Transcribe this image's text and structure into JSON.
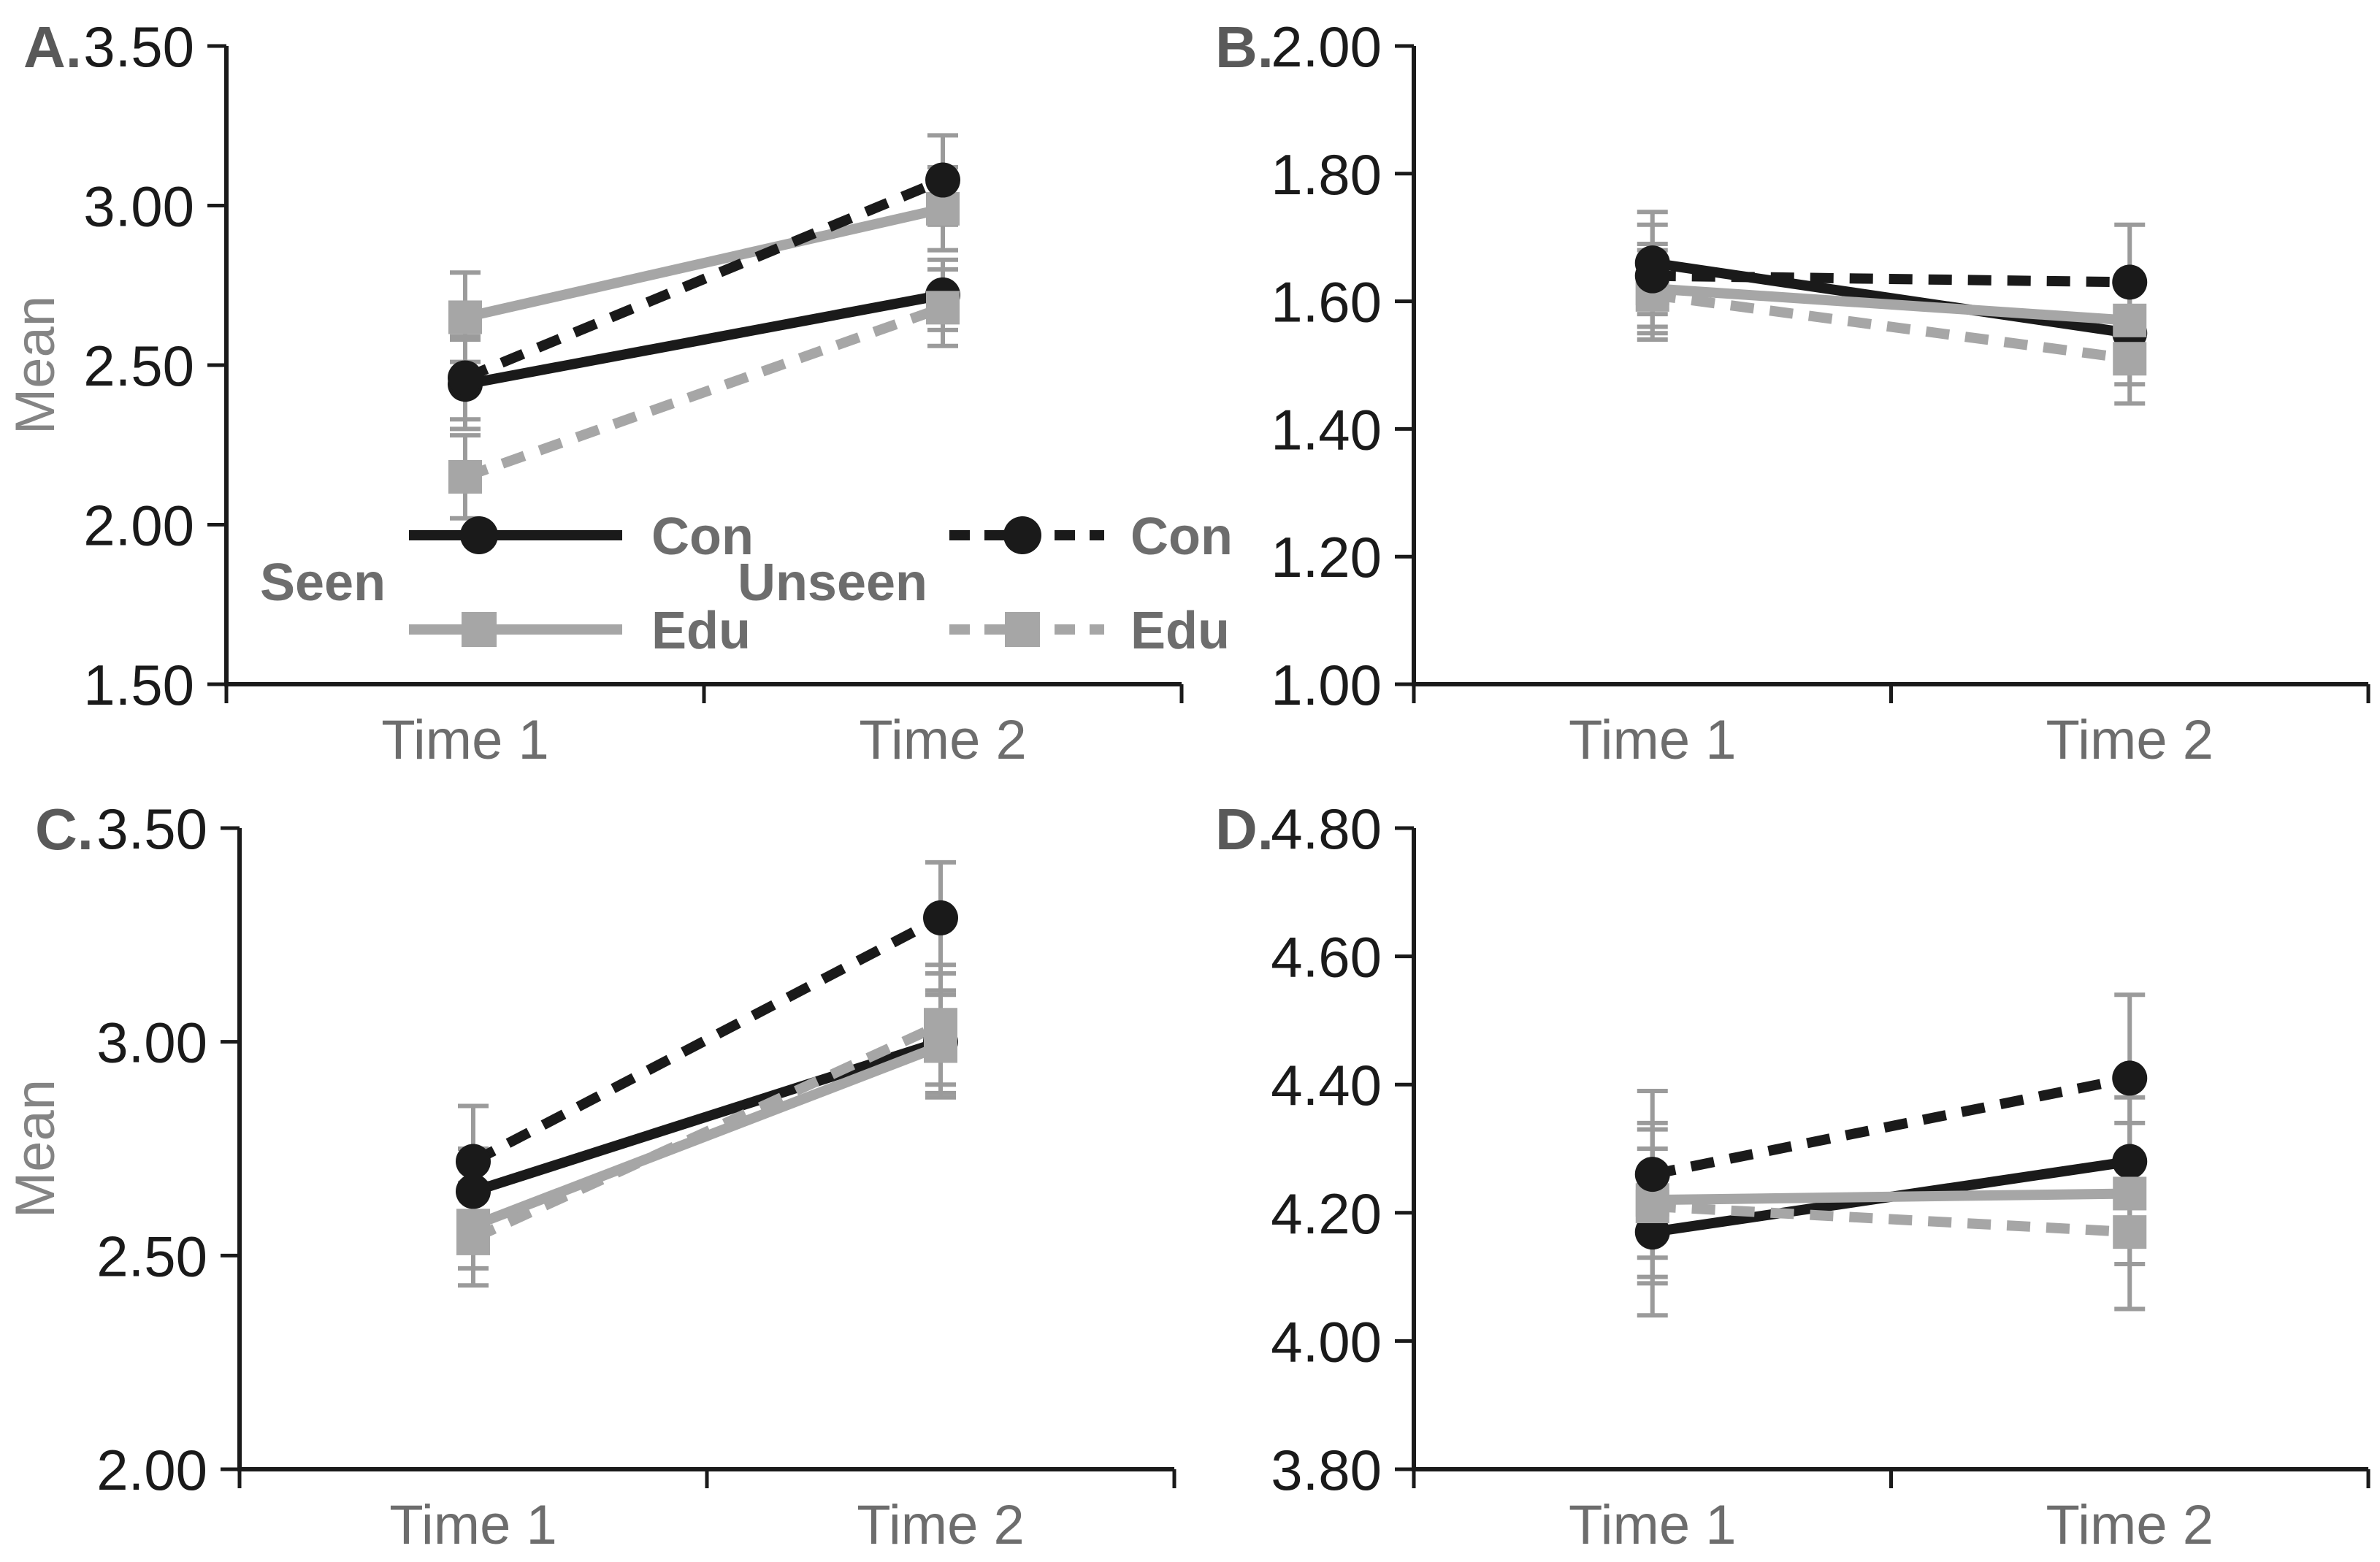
{
  "figure": {
    "background": "#ffffff",
    "palette": {
      "axis": "#1a1a1a",
      "tick_label": "#1a1a1a",
      "secondary_text": "#6d6d6d",
      "axis_title": "#848484",
      "panel_letter": "#595959",
      "error_bar": "#9b9b9b",
      "con_color": "#1a1a1a",
      "edu_color": "#a6a6a6"
    }
  },
  "legend": {
    "groups": [
      {
        "label": "Seen",
        "style": "solid",
        "items": [
          {
            "label": "Con",
            "marker": "circle",
            "color": "#1a1a1a"
          },
          {
            "label": "Edu",
            "marker": "square",
            "color": "#a6a6a6"
          }
        ]
      },
      {
        "label": "Unseen",
        "style": "dashed",
        "items": [
          {
            "label": "Con",
            "marker": "circle",
            "color": "#1a1a1a"
          },
          {
            "label": "Edu",
            "marker": "square",
            "color": "#a6a6a6"
          }
        ]
      }
    ]
  },
  "chart_data": [
    {
      "id": "A",
      "panel_label": "A.",
      "type": "line",
      "ylabel": "Mean",
      "ylim": [
        1.5,
        3.5
      ],
      "ytick_labels": [
        "3.50",
        "3.00",
        "2.50",
        "2.00",
        "1.50"
      ],
      "categories": [
        "Time 1",
        "Time 2"
      ],
      "grid": false,
      "show_legend": true,
      "series": [
        {
          "name": "Seen Con",
          "group": "Seen",
          "condition": "Con",
          "style": "solid",
          "marker": "circle",
          "color": "#1a1a1a",
          "values": [
            2.44,
            2.72
          ],
          "errors": [
            0.14,
            0.11
          ]
        },
        {
          "name": "Seen Edu",
          "group": "Seen",
          "condition": "Edu",
          "style": "solid",
          "marker": "square",
          "color": "#a6a6a6",
          "values": [
            2.65,
            2.99
          ],
          "errors": [
            0.14,
            0.13
          ]
        },
        {
          "name": "Unseen Con",
          "group": "Unseen",
          "condition": "Con",
          "style": "dashed",
          "marker": "circle",
          "color": "#1a1a1a",
          "values": [
            2.46,
            3.08
          ],
          "errors": [
            0.13,
            0.14
          ]
        },
        {
          "name": "Unseen Edu",
          "group": "Unseen",
          "condition": "Edu",
          "style": "dashed",
          "marker": "square",
          "color": "#a6a6a6",
          "values": [
            2.15,
            2.68
          ],
          "errors": [
            0.13,
            0.12
          ]
        }
      ]
    },
    {
      "id": "B",
      "panel_label": "B.",
      "type": "line",
      "ylabel": null,
      "ylim": [
        1.0,
        2.0
      ],
      "ytick_labels": [
        "2.00",
        "1.80",
        "1.60",
        "1.40",
        "1.20",
        "1.00"
      ],
      "categories": [
        "Time 1",
        "Time 2"
      ],
      "grid": false,
      "show_legend": false,
      "series": [
        {
          "name": "Seen Con",
          "group": "Seen",
          "condition": "Con",
          "style": "solid",
          "marker": "circle",
          "color": "#1a1a1a",
          "values": [
            1.66,
            1.55
          ],
          "errors": [
            0.08,
            0.08
          ]
        },
        {
          "name": "Seen Edu",
          "group": "Seen",
          "condition": "Edu",
          "style": "solid",
          "marker": "square",
          "color": "#a6a6a6",
          "values": [
            1.62,
            1.57
          ],
          "errors": [
            0.07,
            0.07
          ]
        },
        {
          "name": "Unseen Con",
          "group": "Unseen",
          "condition": "Con",
          "style": "dashed",
          "marker": "circle",
          "color": "#1a1a1a",
          "values": [
            1.64,
            1.63
          ],
          "errors": [
            0.08,
            0.09
          ]
        },
        {
          "name": "Unseen Edu",
          "group": "Unseen",
          "condition": "Edu",
          "style": "dashed",
          "marker": "square",
          "color": "#a6a6a6",
          "values": [
            1.61,
            1.51
          ],
          "errors": [
            0.07,
            0.07
          ]
        }
      ]
    },
    {
      "id": "C",
      "panel_label": "C.",
      "type": "line",
      "ylabel": "Mean",
      "ylim": [
        2.0,
        3.5
      ],
      "ytick_labels": [
        "3.50",
        "3.00",
        "2.50",
        "2.00"
      ],
      "categories": [
        "Time 1",
        "Time 2"
      ],
      "grid": false,
      "show_legend": false,
      "series": [
        {
          "name": "Seen Con",
          "group": "Seen",
          "condition": "Con",
          "style": "solid",
          "marker": "circle",
          "color": "#1a1a1a",
          "values": [
            2.65,
            3.0
          ],
          "errors": [
            0.1,
            0.12
          ]
        },
        {
          "name": "Seen Edu",
          "group": "Seen",
          "condition": "Edu",
          "style": "solid",
          "marker": "square",
          "color": "#a6a6a6",
          "values": [
            2.57,
            2.99
          ],
          "errors": [
            0.1,
            0.12
          ]
        },
        {
          "name": "Unseen Con",
          "group": "Unseen",
          "condition": "Con",
          "style": "dashed",
          "marker": "circle",
          "color": "#1a1a1a",
          "values": [
            2.72,
            3.29
          ],
          "errors": [
            0.13,
            0.13
          ]
        },
        {
          "name": "Unseen Edu",
          "group": "Unseen",
          "condition": "Edu",
          "style": "dashed",
          "marker": "square",
          "color": "#a6a6a6",
          "values": [
            2.54,
            3.04
          ],
          "errors": [
            0.11,
            0.14
          ]
        }
      ]
    },
    {
      "id": "D",
      "panel_label": "D.",
      "type": "line",
      "ylabel": null,
      "ylim": [
        3.8,
        4.8
      ],
      "ytick_labels": [
        "4.80",
        "4.60",
        "4.40",
        "4.20",
        "4.00",
        "3.80"
      ],
      "categories": [
        "Time 1",
        "Time 2"
      ],
      "grid": false,
      "show_legend": false,
      "series": [
        {
          "name": "Seen Con",
          "group": "Seen",
          "condition": "Con",
          "style": "solid",
          "marker": "circle",
          "color": "#1a1a1a",
          "values": [
            4.17,
            4.28
          ],
          "errors": [
            0.13,
            0.1
          ]
        },
        {
          "name": "Seen Edu",
          "group": "Seen",
          "condition": "Edu",
          "style": "solid",
          "marker": "square",
          "color": "#a6a6a6",
          "values": [
            4.22,
            4.23
          ],
          "errors": [
            0.12,
            0.11
          ]
        },
        {
          "name": "Unseen Con",
          "group": "Unseen",
          "condition": "Con",
          "style": "dashed",
          "marker": "circle",
          "color": "#1a1a1a",
          "values": [
            4.26,
            4.41
          ],
          "errors": [
            0.13,
            0.13
          ]
        },
        {
          "name": "Unseen Edu",
          "group": "Unseen",
          "condition": "Edu",
          "style": "dashed",
          "marker": "square",
          "color": "#a6a6a6",
          "values": [
            4.21,
            4.17
          ],
          "errors": [
            0.12,
            0.12
          ]
        }
      ]
    }
  ]
}
